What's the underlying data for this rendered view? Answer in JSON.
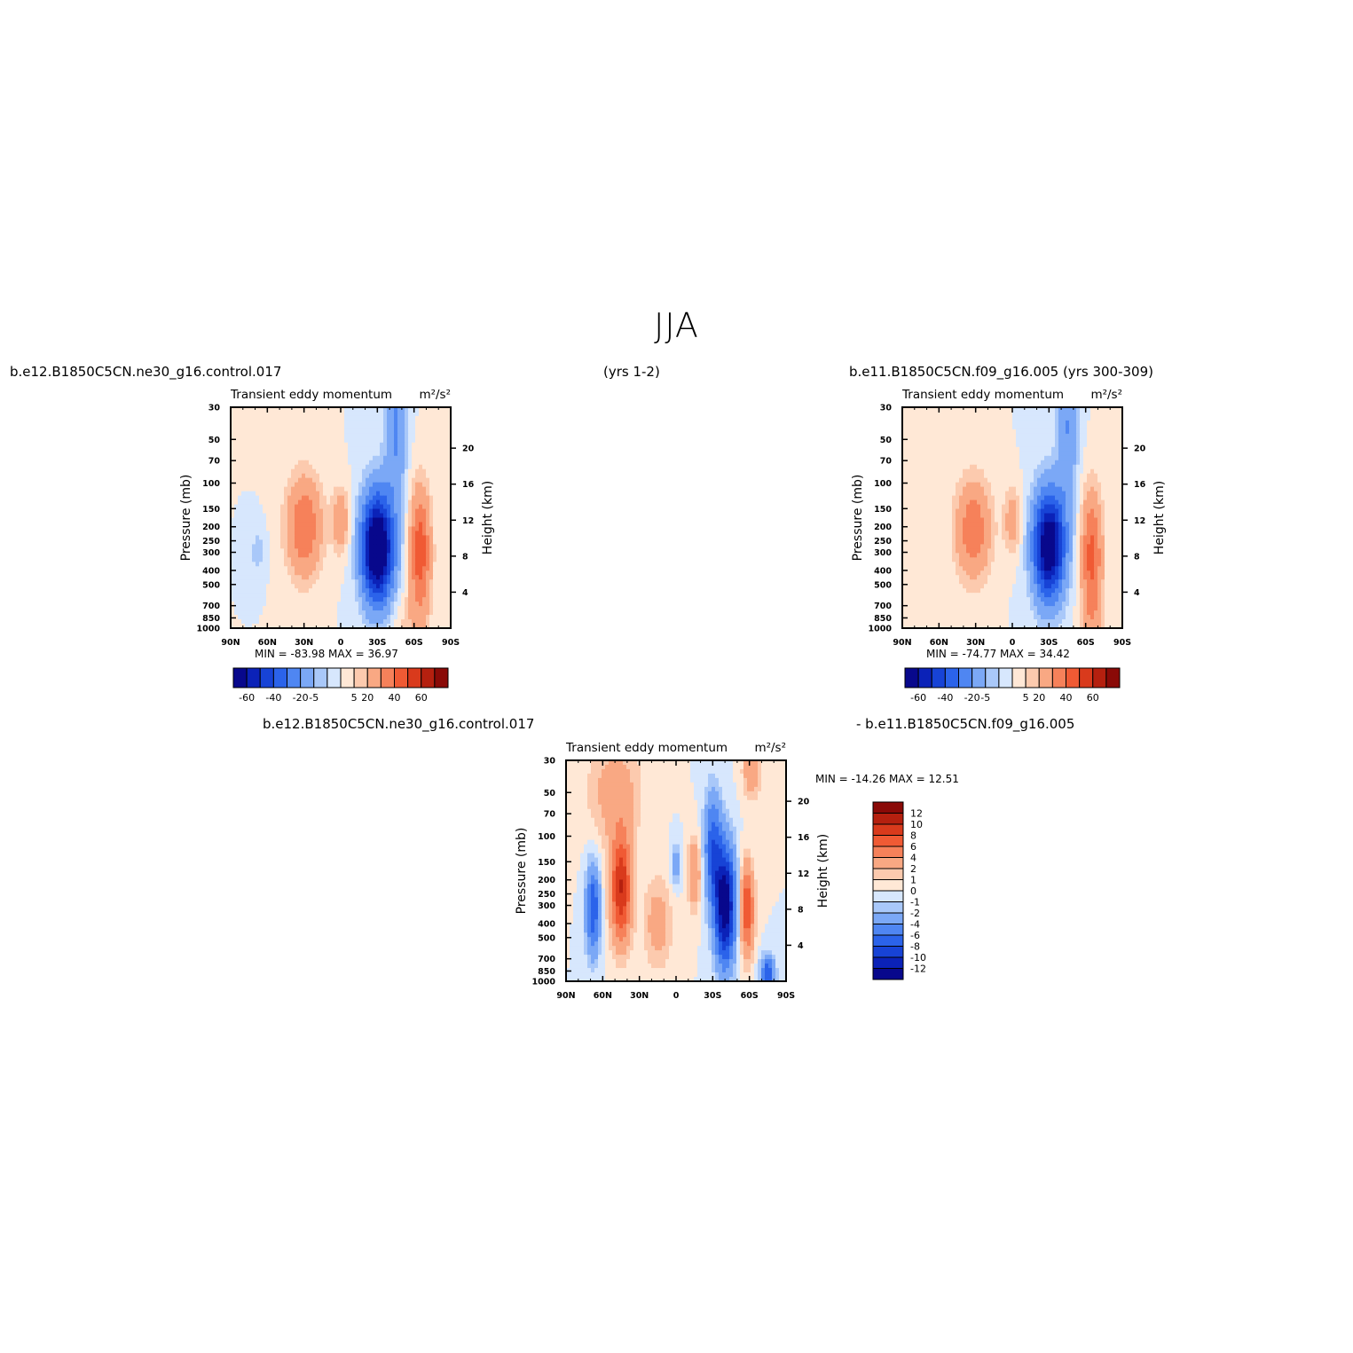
{
  "figure": {
    "title": "JJA",
    "header_left": "b.e12.B1850C5CN.ne30_g16.control.017",
    "header_center": "(yrs 1-2)",
    "header_right": "b.e11.B1850C5CN.f09_g16.005 (yrs 300-309)",
    "diff_left": "b.e12.B1850C5CN.ne30_g16.control.017",
    "diff_right": "- b.e11.B1850C5CN.f09_g16.005"
  },
  "colors": {
    "diverging_blue_to_red": [
      "#08088c",
      "#0b22b8",
      "#1743d6",
      "#2b63ea",
      "#4f86f2",
      "#7ba8f6",
      "#a9c8f9",
      "#d7e7fd",
      "#ffe8d6",
      "#fccaae",
      "#f9a883",
      "#f6815a",
      "#f05a34",
      "#d93a1c",
      "#b5200f",
      "#8a0a07"
    ]
  },
  "chart_data": [
    {
      "type": "heatmap",
      "panel": "top-left",
      "title_left": "Transient eddy momentum",
      "units": "m²/s²",
      "ylabel": "Pressure (mb)",
      "ylabel_right": "Height (km)",
      "x_ticks": [
        "90N",
        "60N",
        "30N",
        "0",
        "30S",
        "60S",
        "90S"
      ],
      "x_range": [
        90,
        -90
      ],
      "y_ticks": [
        30,
        50,
        70,
        100,
        150,
        200,
        250,
        300,
        400,
        500,
        700,
        850,
        1000
      ],
      "y_range": [
        1000,
        30
      ],
      "y_scale": "log",
      "y_right_ticks": [
        4,
        8,
        12,
        16,
        20
      ],
      "stats_text": "MIN = -83.98   MAX =   36.97",
      "min": -83.98,
      "max": 36.97,
      "colorbar_labels": [
        "-60",
        "-40",
        "-20",
        "-5",
        "5",
        "20",
        "40",
        "60"
      ],
      "colorbar_orientation": "horizontal",
      "features": [
        {
          "lat": 30,
          "p": 200,
          "value": 30,
          "lat_width": 10,
          "p_spread": 0.55
        },
        {
          "lat": -30,
          "p": 280,
          "value": -83.98,
          "lat_width": 9,
          "p_spread": 0.6
        },
        {
          "lat": -65,
          "p": 300,
          "value": 36.97,
          "lat_width": 6,
          "p_spread": 0.7
        },
        {
          "lat": 0,
          "p": 180,
          "value": 18,
          "lat_width": 5,
          "p_spread": 0.35
        },
        {
          "lat": 68,
          "p": 300,
          "value": -8,
          "lat_width": 4,
          "p_spread": 0.25
        },
        {
          "lat": -45,
          "p": 40,
          "value": -22,
          "lat_width": 6,
          "p_spread": 0.9
        },
        {
          "lat": -55,
          "p": 900,
          "value": 6,
          "lat_width": 10,
          "p_spread": 0.3
        }
      ]
    },
    {
      "type": "heatmap",
      "panel": "top-right",
      "title_left": "Transient eddy momentum",
      "units": "m²/s²",
      "ylabel": "Pressure (mb)",
      "ylabel_right": "Height (km)",
      "x_ticks": [
        "90N",
        "60N",
        "30N",
        "0",
        "30S",
        "60S",
        "90S"
      ],
      "x_range": [
        90,
        -90
      ],
      "y_ticks": [
        30,
        50,
        70,
        100,
        150,
        200,
        250,
        300,
        400,
        500,
        700,
        850,
        1000
      ],
      "y_range": [
        1000,
        30
      ],
      "y_scale": "log",
      "y_right_ticks": [
        4,
        8,
        12,
        16,
        20
      ],
      "stats_text": "MIN = -74.77   MAX =   34.42",
      "min": -74.77,
      "max": 34.42,
      "colorbar_labels": [
        "-60",
        "-40",
        "-20",
        "-5",
        "5",
        "20",
        "40",
        "60"
      ],
      "colorbar_orientation": "horizontal",
      "features": [
        {
          "lat": 32,
          "p": 210,
          "value": 28,
          "lat_width": 10,
          "p_spread": 0.55
        },
        {
          "lat": -30,
          "p": 270,
          "value": -74.77,
          "lat_width": 9,
          "p_spread": 0.6
        },
        {
          "lat": -65,
          "p": 320,
          "value": 34.42,
          "lat_width": 6,
          "p_spread": 0.7
        },
        {
          "lat": 0,
          "p": 180,
          "value": 15,
          "lat_width": 5,
          "p_spread": 0.35
        },
        {
          "lat": -45,
          "p": 40,
          "value": -20,
          "lat_width": 6,
          "p_spread": 0.9
        },
        {
          "lat": -65,
          "p": 900,
          "value": 8,
          "lat_width": 6,
          "p_spread": 0.3
        }
      ]
    },
    {
      "type": "heatmap",
      "panel": "bottom-center",
      "title_left": "Transient eddy momentum",
      "units": "m²/s²",
      "ylabel": "Pressure (mb)",
      "ylabel_right": "Height (km)",
      "x_ticks": [
        "90N",
        "60N",
        "30N",
        "0",
        "30S",
        "60S",
        "90S"
      ],
      "x_range": [
        90,
        -90
      ],
      "y_ticks": [
        30,
        50,
        70,
        100,
        150,
        200,
        250,
        300,
        400,
        500,
        700,
        850,
        1000
      ],
      "y_range": [
        1000,
        30
      ],
      "y_scale": "log",
      "y_right_ticks": [
        4,
        8,
        12,
        16,
        20
      ],
      "stats_text": "MIN = -14.26   MAX =   12.51",
      "min": -14.26,
      "max": 12.51,
      "colorbar_labels": [
        "12",
        "10",
        "8",
        "6",
        "4",
        "2",
        "1",
        "0",
        "-1",
        "-2",
        "-4",
        "-6",
        "-8",
        "-10",
        "-12"
      ],
      "colorbar_orientation": "vertical",
      "features": [
        {
          "lat": 68,
          "p": 320,
          "value": -8,
          "lat_width": 4,
          "p_spread": 0.5
        },
        {
          "lat": 45,
          "p": 230,
          "value": 10,
          "lat_width": 6,
          "p_spread": 0.6
        },
        {
          "lat": 15,
          "p": 400,
          "value": 3,
          "lat_width": 8,
          "p_spread": 0.5
        },
        {
          "lat": -40,
          "p": 300,
          "value": -14.26,
          "lat_width": 6,
          "p_spread": 0.65
        },
        {
          "lat": -30,
          "p": 120,
          "value": -7,
          "lat_width": 5,
          "p_spread": 0.6
        },
        {
          "lat": -58,
          "p": 320,
          "value": 8,
          "lat_width": 4,
          "p_spread": 0.5
        },
        {
          "lat": -15,
          "p": 180,
          "value": 4,
          "lat_width": 4,
          "p_spread": 0.4
        },
        {
          "lat": 0,
          "p": 160,
          "value": -3,
          "lat_width": 3,
          "p_spread": 0.25
        },
        {
          "lat": 50,
          "p": 50,
          "value": 3,
          "lat_width": 15,
          "p_spread": 0.6
        },
        {
          "lat": -75,
          "p": 900,
          "value": -8,
          "lat_width": 4,
          "p_spread": 0.2
        },
        {
          "lat": -62,
          "p": 35,
          "value": 4,
          "lat_width": 5,
          "p_spread": 0.3
        }
      ]
    }
  ]
}
